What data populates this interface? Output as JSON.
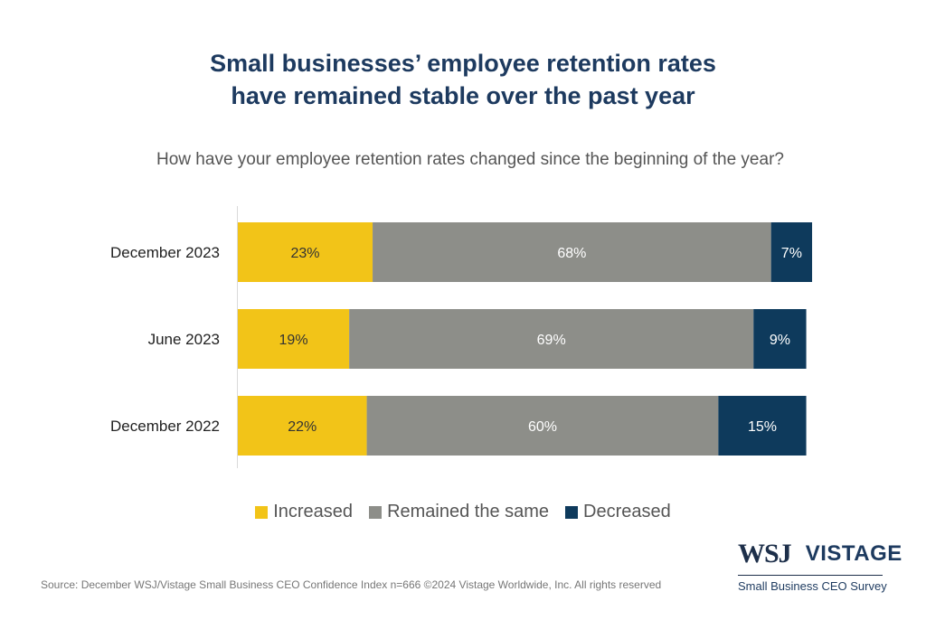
{
  "title_lines": [
    "Small businesses’ employee retention rates",
    "have remained stable over the past year"
  ],
  "subtitle": "How have your employee retention rates changed since the beginning of the year?",
  "chart_data": {
    "type": "bar",
    "orientation": "horizontal",
    "stacked": true,
    "title": "Small businesses’ employee retention rates have remained stable over the past year",
    "subtitle": "How have your employee retention rates changed since the beginning of the year?",
    "categories": [
      "December 2023",
      "June 2023",
      "December 2022"
    ],
    "series": [
      {
        "name": "Increased",
        "color": "#f2c418",
        "label_color": "#333333",
        "values": [
          23,
          19,
          22
        ],
        "labels": [
          "23%",
          "19%",
          "22%"
        ]
      },
      {
        "name": "Remained the same",
        "color": "#8d8e89",
        "label_color": "#ffffff",
        "values": [
          68,
          69,
          60
        ],
        "labels": [
          "68%",
          "69%",
          "60%"
        ]
      },
      {
        "name": "Decreased",
        "color": "#0e3a5c",
        "label_color": "#ffffff",
        "values": [
          7,
          9,
          15
        ],
        "labels": [
          "7%",
          "9%",
          "15%"
        ]
      }
    ],
    "xlim": [
      0,
      100
    ],
    "grid": false,
    "legend": "bottom"
  },
  "legend": [
    {
      "label": "Increased",
      "color": "#f2c418"
    },
    {
      "label": "Remained the same",
      "color": "#8d8e89"
    },
    {
      "label": "Decreased",
      "color": "#0e3a5c"
    }
  ],
  "source": "Source: December WSJ/Vistage Small Business CEO Confidence Index n=666 ©2024 Vistage Worldwide, Inc. All rights reserved",
  "logo": {
    "wsj": "WSJ",
    "vistage": "VISTAGE",
    "subtitle": "Small Business CEO Survey"
  }
}
